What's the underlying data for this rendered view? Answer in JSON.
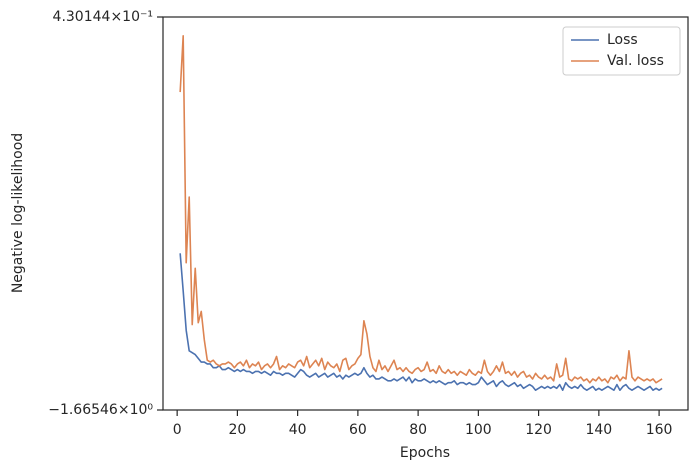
{
  "chart_data": {
    "type": "line",
    "xlabel": "Epochs",
    "ylabel": "Negative log-likelihood",
    "x": [
      1,
      2,
      3,
      4,
      5,
      6,
      7,
      8,
      9,
      10,
      11,
      12,
      13,
      14,
      15,
      16,
      17,
      18,
      19,
      20,
      21,
      22,
      23,
      24,
      25,
      26,
      27,
      28,
      29,
      30,
      31,
      32,
      33,
      34,
      35,
      36,
      37,
      38,
      39,
      40,
      41,
      42,
      43,
      44,
      45,
      46,
      47,
      48,
      49,
      50,
      51,
      52,
      53,
      54,
      55,
      56,
      57,
      58,
      59,
      60,
      61,
      62,
      63,
      64,
      65,
      66,
      67,
      68,
      69,
      70,
      71,
      72,
      73,
      74,
      75,
      76,
      77,
      78,
      79,
      80,
      81,
      82,
      83,
      84,
      85,
      86,
      87,
      88,
      89,
      90,
      91,
      92,
      93,
      94,
      95,
      96,
      97,
      98,
      99,
      100,
      101,
      102,
      103,
      104,
      105,
      106,
      107,
      108,
      109,
      110,
      111,
      112,
      113,
      114,
      115,
      116,
      117,
      118,
      119,
      120,
      121,
      122,
      123,
      124,
      125,
      126,
      127,
      128,
      129,
      130,
      131,
      132,
      133,
      134,
      135,
      136,
      137,
      138,
      139,
      140,
      141,
      142,
      143,
      144,
      145,
      146,
      147,
      148,
      149,
      150,
      151,
      152,
      153,
      154,
      155,
      156,
      157,
      158,
      159,
      160,
      161
    ],
    "series": [
      {
        "name": "Loss",
        "color": "#4c72b0",
        "values": [
          -0.83,
          -1.03,
          -1.24,
          -1.35,
          -1.36,
          -1.37,
          -1.39,
          -1.41,
          -1.41,
          -1.42,
          -1.42,
          -1.44,
          -1.44,
          -1.43,
          -1.45,
          -1.45,
          -1.44,
          -1.45,
          -1.46,
          -1.45,
          -1.46,
          -1.45,
          -1.46,
          -1.46,
          -1.47,
          -1.46,
          -1.46,
          -1.47,
          -1.46,
          -1.47,
          -1.48,
          -1.46,
          -1.47,
          -1.47,
          -1.48,
          -1.47,
          -1.47,
          -1.48,
          -1.49,
          -1.47,
          -1.45,
          -1.46,
          -1.48,
          -1.49,
          -1.48,
          -1.47,
          -1.49,
          -1.48,
          -1.47,
          -1.49,
          -1.48,
          -1.47,
          -1.49,
          -1.48,
          -1.5,
          -1.48,
          -1.49,
          -1.48,
          -1.47,
          -1.48,
          -1.47,
          -1.44,
          -1.47,
          -1.49,
          -1.48,
          -1.5,
          -1.5,
          -1.49,
          -1.5,
          -1.51,
          -1.51,
          -1.5,
          -1.51,
          -1.5,
          -1.49,
          -1.51,
          -1.49,
          -1.52,
          -1.5,
          -1.51,
          -1.51,
          -1.5,
          -1.51,
          -1.52,
          -1.51,
          -1.52,
          -1.51,
          -1.52,
          -1.53,
          -1.52,
          -1.52,
          -1.51,
          -1.53,
          -1.52,
          -1.52,
          -1.53,
          -1.52,
          -1.53,
          -1.53,
          -1.52,
          -1.49,
          -1.51,
          -1.53,
          -1.52,
          -1.51,
          -1.54,
          -1.52,
          -1.51,
          -1.53,
          -1.54,
          -1.53,
          -1.52,
          -1.54,
          -1.53,
          -1.55,
          -1.54,
          -1.53,
          -1.54,
          -1.56,
          -1.55,
          -1.54,
          -1.55,
          -1.54,
          -1.55,
          -1.54,
          -1.55,
          -1.53,
          -1.56,
          -1.52,
          -1.54,
          -1.55,
          -1.54,
          -1.55,
          -1.53,
          -1.55,
          -1.56,
          -1.55,
          -1.54,
          -1.56,
          -1.55,
          -1.56,
          -1.55,
          -1.54,
          -1.55,
          -1.56,
          -1.53,
          -1.56,
          -1.54,
          -1.53,
          -1.55,
          -1.56,
          -1.55,
          -1.54,
          -1.55,
          -1.56,
          -1.55,
          -1.54,
          -1.56,
          -1.55,
          -1.56,
          -1.55
        ]
      },
      {
        "name": "Val. loss",
        "color": "#dd8452",
        "values": [
          0.03,
          0.33,
          -0.88,
          -0.53,
          -1.21,
          -0.91,
          -1.2,
          -1.14,
          -1.29,
          -1.4,
          -1.41,
          -1.4,
          -1.42,
          -1.43,
          -1.42,
          -1.42,
          -1.41,
          -1.42,
          -1.44,
          -1.42,
          -1.41,
          -1.43,
          -1.4,
          -1.44,
          -1.42,
          -1.43,
          -1.41,
          -1.45,
          -1.43,
          -1.42,
          -1.44,
          -1.42,
          -1.38,
          -1.45,
          -1.43,
          -1.44,
          -1.42,
          -1.43,
          -1.44,
          -1.41,
          -1.4,
          -1.43,
          -1.38,
          -1.44,
          -1.42,
          -1.4,
          -1.43,
          -1.39,
          -1.45,
          -1.41,
          -1.43,
          -1.44,
          -1.42,
          -1.46,
          -1.4,
          -1.39,
          -1.45,
          -1.43,
          -1.42,
          -1.39,
          -1.37,
          -1.19,
          -1.26,
          -1.38,
          -1.44,
          -1.46,
          -1.4,
          -1.45,
          -1.43,
          -1.46,
          -1.43,
          -1.4,
          -1.45,
          -1.44,
          -1.46,
          -1.44,
          -1.46,
          -1.47,
          -1.45,
          -1.44,
          -1.46,
          -1.45,
          -1.41,
          -1.46,
          -1.45,
          -1.47,
          -1.43,
          -1.46,
          -1.47,
          -1.45,
          -1.47,
          -1.46,
          -1.48,
          -1.46,
          -1.47,
          -1.48,
          -1.45,
          -1.47,
          -1.48,
          -1.46,
          -1.47,
          -1.4,
          -1.46,
          -1.48,
          -1.46,
          -1.43,
          -1.46,
          -1.41,
          -1.47,
          -1.46,
          -1.48,
          -1.46,
          -1.49,
          -1.47,
          -1.46,
          -1.49,
          -1.48,
          -1.5,
          -1.47,
          -1.49,
          -1.5,
          -1.48,
          -1.5,
          -1.49,
          -1.51,
          -1.42,
          -1.49,
          -1.48,
          -1.39,
          -1.5,
          -1.51,
          -1.49,
          -1.5,
          -1.49,
          -1.51,
          -1.5,
          -1.52,
          -1.5,
          -1.51,
          -1.49,
          -1.51,
          -1.5,
          -1.52,
          -1.49,
          -1.5,
          -1.48,
          -1.51,
          -1.49,
          -1.5,
          -1.35,
          -1.49,
          -1.51,
          -1.49,
          -1.5,
          -1.51,
          -1.5,
          -1.51,
          -1.5,
          -1.52,
          -1.51,
          -1.5
        ]
      }
    ],
    "xlim": [
      -4.7,
      169.6
    ],
    "xticks": [
      0,
      20,
      40,
      60,
      80,
      100,
      120,
      140,
      160
    ],
    "ylim": [
      -1.66546,
      0.430144
    ],
    "yticks": [
      {
        "value": -1.66546,
        "label": "−1.66546×10⁰"
      },
      {
        "value": 0.430144,
        "label": "4.30144×10⁻¹"
      }
    ],
    "grid": false,
    "legend": "upper right"
  }
}
